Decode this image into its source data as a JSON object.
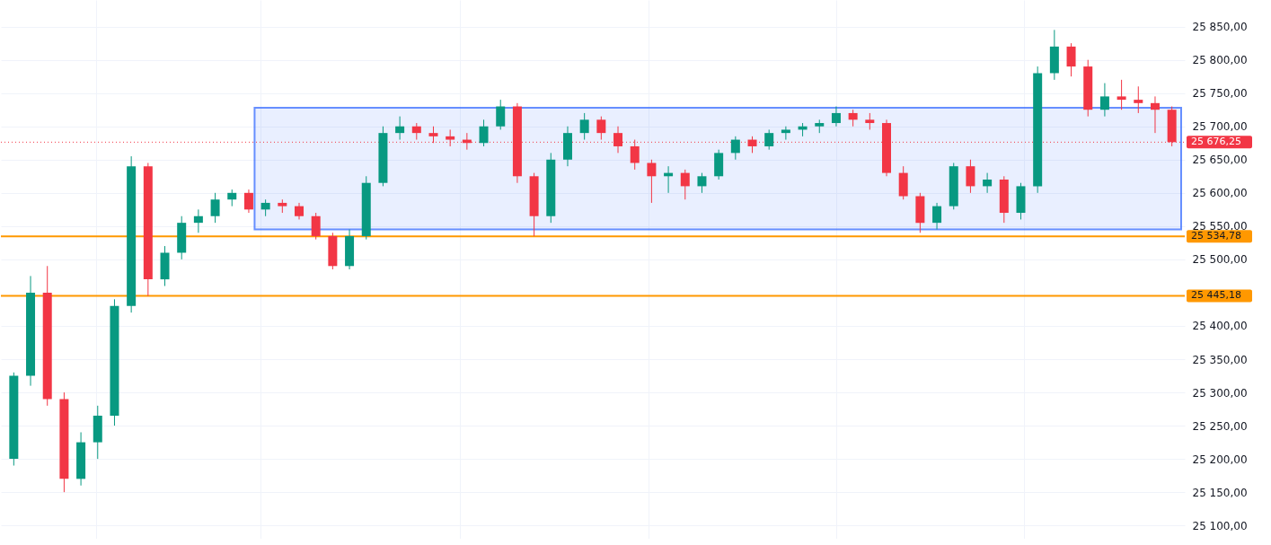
{
  "chart_data": {
    "type": "candlestick",
    "categories": [
      null,
      null,
      null,
      null,
      null,
      null,
      null,
      null,
      null,
      null,
      null,
      null,
      null,
      null,
      null,
      null,
      null,
      null,
      null,
      null,
      null,
      null,
      null,
      null,
      null,
      null,
      null,
      null,
      null,
      null,
      null,
      null,
      null,
      null,
      null,
      null,
      null,
      null,
      null,
      null,
      null,
      null,
      null,
      null,
      null,
      null,
      null,
      null,
      null,
      null,
      null,
      null,
      null,
      null,
      null,
      null,
      null,
      null,
      null,
      null,
      null,
      null,
      null,
      null,
      null,
      null,
      null,
      null,
      null,
      null
    ],
    "ohlc": [
      [
        25200,
        25330,
        25190,
        25325
      ],
      [
        25325,
        25475,
        25310,
        25450
      ],
      [
        25450,
        25490,
        25280,
        25290
      ],
      [
        25290,
        25300,
        25150,
        25170
      ],
      [
        25170,
        25240,
        25160,
        25225
      ],
      [
        25225,
        25280,
        25200,
        25265
      ],
      [
        25265,
        25440,
        25250,
        25430
      ],
      [
        25430,
        25655,
        25420,
        25640
      ],
      [
        25640,
        25645,
        25445,
        25470
      ],
      [
        25470,
        25520,
        25460,
        25510
      ],
      [
        25510,
        25565,
        25500,
        25555
      ],
      [
        25555,
        25575,
        25540,
        25565
      ],
      [
        25565,
        25600,
        25555,
        25590
      ],
      [
        25590,
        25605,
        25580,
        25600
      ],
      [
        25600,
        25605,
        25570,
        25575
      ],
      [
        25575,
        25590,
        25565,
        25585
      ],
      [
        25585,
        25590,
        25570,
        25580
      ],
      [
        25580,
        25585,
        25560,
        25565
      ],
      [
        25565,
        25570,
        25530,
        25535
      ],
      [
        25535,
        25540,
        25485,
        25490
      ],
      [
        25490,
        25545,
        25485,
        25535
      ],
      [
        25535,
        25625,
        25530,
        25615
      ],
      [
        25615,
        25700,
        25610,
        25690
      ],
      [
        25690,
        25715,
        25680,
        25700
      ],
      [
        25700,
        25705,
        25680,
        25690
      ],
      [
        25690,
        25700,
        25675,
        25685
      ],
      [
        25685,
        25695,
        25670,
        25680
      ],
      [
        25680,
        25690,
        25665,
        25675
      ],
      [
        25675,
        25710,
        25670,
        25700
      ],
      [
        25700,
        25740,
        25695,
        25730
      ],
      [
        25730,
        25735,
        25615,
        25625
      ],
      [
        25625,
        25630,
        25535,
        25565
      ],
      [
        25565,
        25660,
        25555,
        25650
      ],
      [
        25650,
        25700,
        25640,
        25690
      ],
      [
        25690,
        25720,
        25680,
        25710
      ],
      [
        25710,
        25715,
        25680,
        25690
      ],
      [
        25690,
        25700,
        25660,
        25670
      ],
      [
        25670,
        25680,
        25635,
        25645
      ],
      [
        25645,
        25650,
        25585,
        25625
      ],
      [
        25625,
        25640,
        25600,
        25630
      ],
      [
        25630,
        25635,
        25590,
        25610
      ],
      [
        25610,
        25630,
        25600,
        25625
      ],
      [
        25625,
        25665,
        25620,
        25660
      ],
      [
        25660,
        25685,
        25650,
        25680
      ],
      [
        25680,
        25685,
        25660,
        25670
      ],
      [
        25670,
        25695,
        25665,
        25690
      ],
      [
        25690,
        25700,
        25680,
        25695
      ],
      [
        25695,
        25705,
        25685,
        25700
      ],
      [
        25700,
        25710,
        25690,
        25705
      ],
      [
        25705,
        25730,
        25700,
        25720
      ],
      [
        25720,
        25725,
        25700,
        25710
      ],
      [
        25710,
        25720,
        25695,
        25705
      ],
      [
        25705,
        25710,
        25625,
        25630
      ],
      [
        25630,
        25640,
        25590,
        25595
      ],
      [
        25595,
        25600,
        25540,
        25555
      ],
      [
        25555,
        25585,
        25545,
        25580
      ],
      [
        25580,
        25645,
        25575,
        25640
      ],
      [
        25640,
        25650,
        25600,
        25610
      ],
      [
        25610,
        25630,
        25600,
        25620
      ],
      [
        25620,
        25625,
        25555,
        25570
      ],
      [
        25570,
        25615,
        25560,
        25610
      ],
      [
        25610,
        25790,
        25600,
        25780
      ],
      [
        25780,
        25845,
        25770,
        25820
      ],
      [
        25820,
        25825,
        25775,
        25790
      ],
      [
        25790,
        25800,
        25715,
        25725
      ],
      [
        25725,
        25765,
        25715,
        25745
      ],
      [
        25745,
        25770,
        25725,
        25740
      ],
      [
        25740,
        25760,
        25720,
        25735
      ],
      [
        25735,
        25745,
        25690,
        25725
      ],
      [
        25725,
        25730,
        25670,
        25676.25
      ]
    ],
    "colors": [
      "#089981",
      "#089981",
      "#f23645",
      "#f23645",
      "#089981",
      "#089981",
      "#089981",
      "#089981",
      "#f23645",
      "#089981",
      "#089981",
      "#089981",
      "#089981",
      "#089981",
      "#f23645",
      "#089981",
      "#f23645",
      "#f23645",
      "#f23645",
      "#f23645",
      "#089981",
      "#089981",
      "#089981",
      "#089981",
      "#f23645",
      "#f23645",
      "#f23645",
      "#f23645",
      "#089981",
      "#089981",
      "#f23645",
      "#f23645",
      "#089981",
      "#089981",
      "#089981",
      "#f23645",
      "#f23645",
      "#f23645",
      "#f23645",
      "#089981",
      "#f23645",
      "#089981",
      "#089981",
      "#089981",
      "#f23645",
      "#089981",
      "#089981",
      "#089981",
      "#089981",
      "#089981",
      "#f23645",
      "#f23645",
      "#f23645",
      "#f23645",
      "#f23645",
      "#089981",
      "#089981",
      "#f23645",
      "#089981",
      "#f23645",
      "#089981",
      "#089981",
      "#089981",
      "#f23645",
      "#f23645",
      "#089981",
      "#f23645",
      "#f23645",
      "#f23645",
      "#f23645"
    ],
    "ylim": [
      25080,
      25890
    ],
    "yticks": [
      {
        "value": 25100,
        "label": "25 100,00"
      },
      {
        "value": 25150,
        "label": "25 150,00"
      },
      {
        "value": 25200,
        "label": "25 200,00"
      },
      {
        "value": 25250,
        "label": "25 250,00"
      },
      {
        "value": 25300,
        "label": "25 300,00"
      },
      {
        "value": 25350,
        "label": "25 350,00"
      },
      {
        "value": 25400,
        "label": "25 400,00"
      },
      {
        "value": 25500,
        "label": "25 500,00"
      },
      {
        "value": 25550,
        "label": "25 550,00"
      },
      {
        "value": 25600,
        "label": "25 600,00"
      },
      {
        "value": 25650,
        "label": "25 650,00"
      },
      {
        "value": 25700,
        "label": "25 700,00"
      },
      {
        "value": 25750,
        "label": "25 750,00"
      },
      {
        "value": 25800,
        "label": "25 800,00"
      },
      {
        "value": 25850,
        "label": "25 850,00"
      }
    ],
    "grid": true,
    "tick_labels": "y",
    "ref_lines": [
      {
        "axis": "y",
        "value": 25676.25,
        "label": "25 676,25",
        "color": "#f23645",
        "line_style": "dotted"
      },
      {
        "axis": "y",
        "value": 25534.78,
        "label": "25 534,78",
        "color": "#ff9800",
        "line_style": "solid"
      },
      {
        "axis": "y",
        "value": 25445.18,
        "label": "25 445,18",
        "color": "#ff9800",
        "line_style": "solid"
      }
    ],
    "bands": [
      {
        "axis": "y",
        "from": 25545,
        "to": 25728,
        "color": "#2962ff"
      }
    ]
  }
}
